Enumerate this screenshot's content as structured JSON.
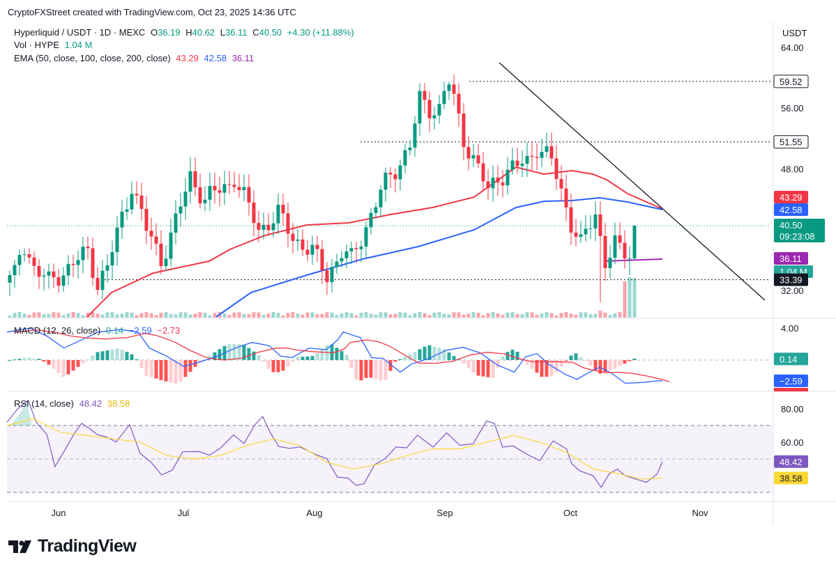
{
  "header": {
    "attribution": "CryptoFXStreet created with TradingView.com, Oct 23, 2025 14:36 UTC"
  },
  "legend": {
    "symbol": "Hyperliquid / USDT · 1D · MEXC",
    "o_label": "O",
    "o_value": "36.19",
    "h_label": "H",
    "h_value": "40.62",
    "l_label": "L",
    "l_value": "36.11",
    "c_label": "C",
    "c_value": "40.50",
    "change": "+4.30 (+11.88%)",
    "vol_label": "Vol · HYPE",
    "vol_value": "1.04 M",
    "ema_label": "EMA (50, close, 100, close, 200, close)",
    "ema50": "43.29",
    "ema100": "42.58",
    "ema200": "36.11",
    "macd_label": "MACD (12, 26, close)",
    "macd_hist": "0.14",
    "macd_line": "−2.59",
    "macd_signal": "−2.73",
    "rsi_label": "RSI (14, close)",
    "rsi_value": "48.42",
    "rsi_ma": "38.58"
  },
  "axis": {
    "currency": "USDT",
    "price_ticks": [
      "64.00",
      "56.00",
      "48.00",
      "32.00"
    ],
    "macd_ticks": [
      "4.00"
    ],
    "rsi_ticks": [
      "80.00",
      "60.00"
    ],
    "months": [
      "Jun",
      "Jul",
      "Aug",
      "Sep",
      "Oct",
      "Nov"
    ]
  },
  "price_labels": [
    {
      "text": "59.52",
      "bg": "#ffffff",
      "fg": "#131722",
      "border": "#131722"
    },
    {
      "text": "51.55",
      "bg": "#ffffff",
      "fg": "#131722",
      "border": "#131722"
    },
    {
      "text": "43.29",
      "bg": "#f23645",
      "fg": "#ffffff"
    },
    {
      "text": "42.58",
      "bg": "#2962ff",
      "fg": "#ffffff"
    },
    {
      "text": "40.50",
      "bg": "#089981",
      "fg": "#ffffff"
    },
    {
      "text": "09:23:08",
      "bg": "#089981",
      "fg": "#ffffff"
    },
    {
      "text": "36.11",
      "bg": "#9c27b0",
      "fg": "#ffffff"
    },
    {
      "text": "1.04 M",
      "bg": "#26a69a",
      "fg": "#ffffff"
    },
    {
      "text": "33.39",
      "bg": "#131722",
      "fg": "#ffffff"
    }
  ],
  "macd_labels": [
    {
      "text": "0.14",
      "bg": "#26a69a",
      "fg": "#ffffff"
    },
    {
      "text": "−2.59",
      "bg": "#2962ff",
      "fg": "#ffffff"
    }
  ],
  "rsi_labels": [
    {
      "text": "48.42",
      "bg": "#7e57c2",
      "fg": "#ffffff"
    },
    {
      "text": "38.58",
      "bg": "#fdd835",
      "fg": "#131722"
    }
  ],
  "brand": "TradingView",
  "colors": {
    "up": "#089981",
    "down": "#f23645",
    "ema50": "#f23645",
    "ema100": "#2962ff",
    "ema200": "#9c27b0",
    "rsi": "#7e57c2",
    "rsi_ma": "#fdd835"
  },
  "chart_data": [
    {
      "type": "candlestick",
      "title": "Hyperliquid / USDT · 1D · MEXC",
      "ylim": [
        30,
        65
      ],
      "x_axis": [
        "Jun",
        "Jul",
        "Aug",
        "Sep",
        "Oct",
        "Nov"
      ],
      "series": [
        {
          "name": "EMA 50",
          "values": [
            43.29
          ]
        },
        {
          "name": "EMA 100",
          "values": [
            42.58
          ]
        },
        {
          "name": "EMA 200",
          "values": [
            36.11
          ]
        }
      ],
      "annotations": [
        {
          "type": "horizontal_line",
          "value": 59.52
        },
        {
          "type": "horizontal_line",
          "value": 51.55
        },
        {
          "type": "horizontal_line",
          "value": 33.39
        },
        {
          "type": "trendline",
          "note": "descending resistance from Sep high"
        }
      ],
      "last": {
        "open": 36.19,
        "high": 40.62,
        "low": 36.11,
        "close": 40.5
      }
    },
    {
      "type": "bar",
      "title": "Vol · HYPE",
      "last_value": "1.04 M"
    },
    {
      "type": "line",
      "title": "MACD (12, 26, close)",
      "series": [
        {
          "name": "Histogram",
          "last_value": 0.14
        },
        {
          "name": "MACD",
          "last_value": -2.59
        },
        {
          "name": "Signal",
          "last_value": -2.73
        }
      ]
    },
    {
      "type": "line",
      "title": "RSI (14, close)",
      "ylim": [
        20,
        90
      ],
      "series": [
        {
          "name": "RSI",
          "last_value": 48.42
        },
        {
          "name": "RSI MA",
          "last_value": 38.58
        }
      ]
    }
  ]
}
